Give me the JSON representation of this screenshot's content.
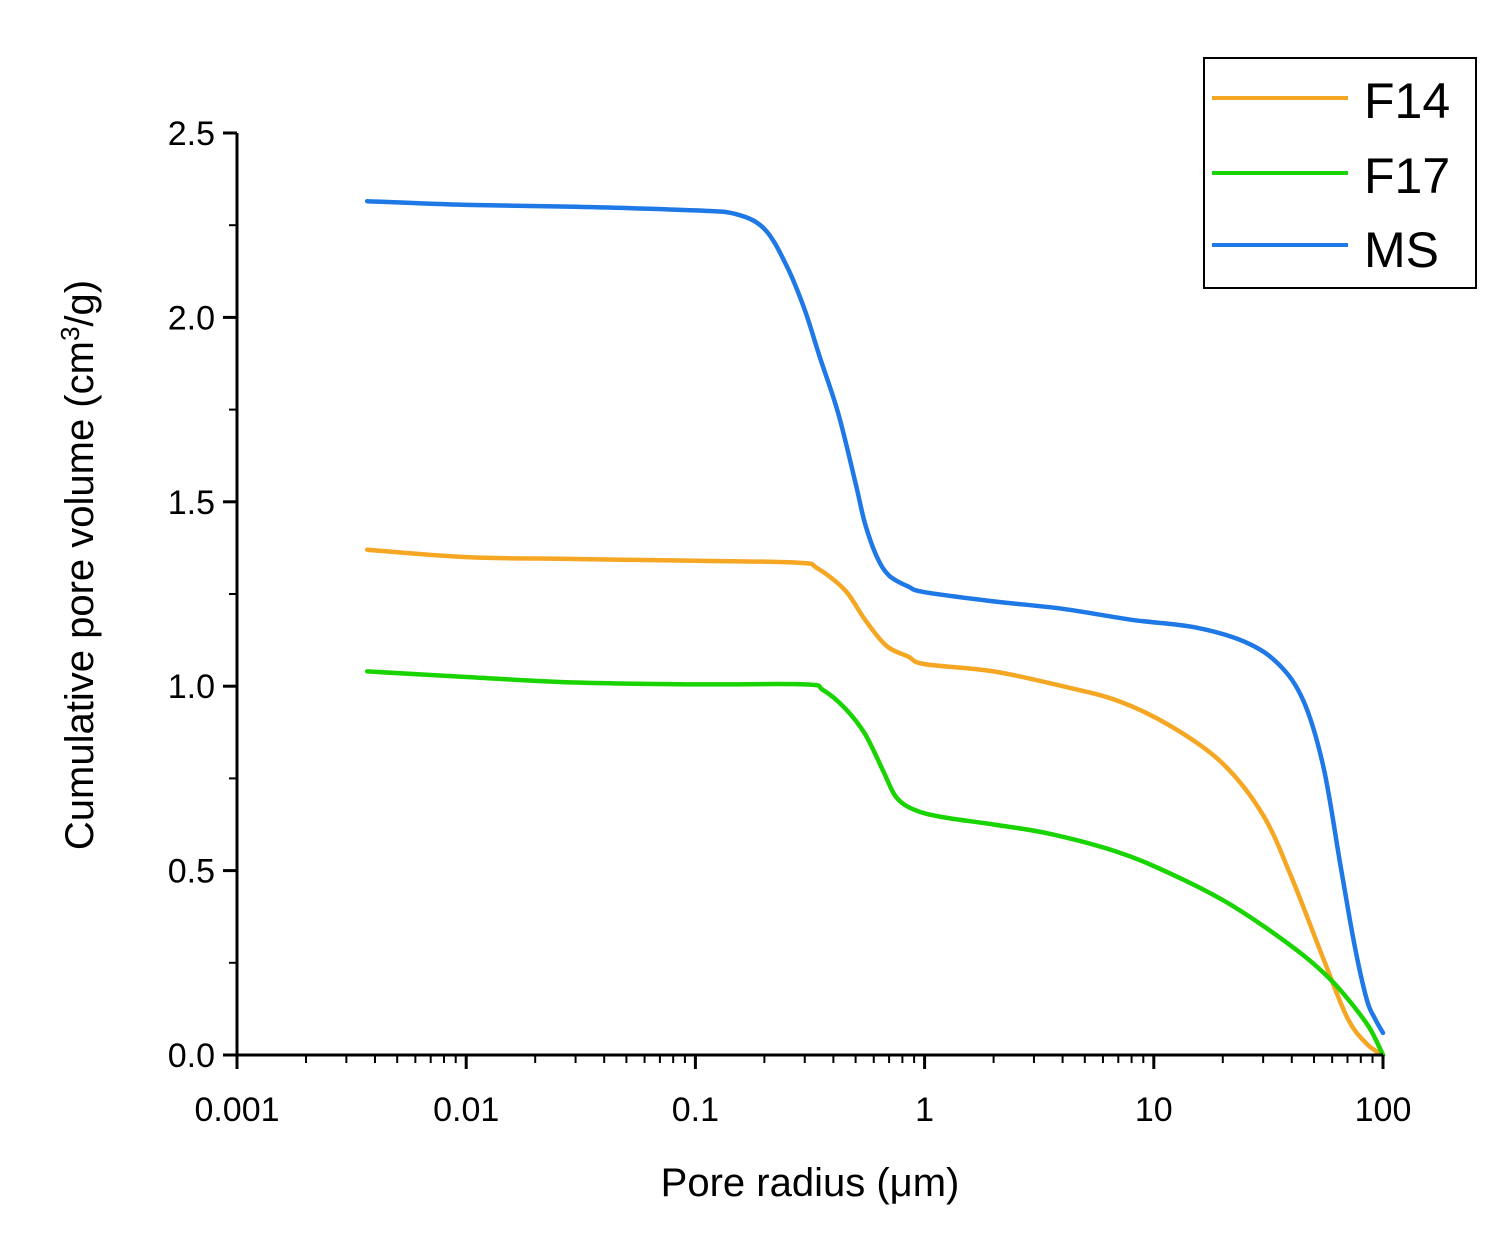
{
  "chart_data": {
    "type": "line",
    "xscale": "log",
    "xlabel": "Pore radius (μm)",
    "ylabel_parts": [
      "Cumulative pore volume (cm",
      "3",
      "/g)"
    ],
    "xlim": [
      0.001,
      100
    ],
    "ylim": [
      0,
      2.5
    ],
    "x_ticks": [
      0.001,
      0.01,
      0.1,
      1,
      10,
      100
    ],
    "x_tick_labels": [
      "0.001",
      "0.01",
      "0.1",
      "1",
      "10",
      "100"
    ],
    "y_ticks": [
      0,
      0.5,
      1,
      1.5,
      2,
      2.5
    ],
    "y_tick_labels": [
      "0.0",
      "0.5",
      "1.0",
      "1.5",
      "2.0",
      "2.5"
    ],
    "grid": false,
    "legend_position": "top-right",
    "series": [
      {
        "name": "F14",
        "color": "#F5A623",
        "points": [
          [
            0.0037,
            1.37
          ],
          [
            0.01,
            1.35
          ],
          [
            0.03,
            1.345
          ],
          [
            0.1,
            1.34
          ],
          [
            0.28,
            1.335
          ],
          [
            0.34,
            1.32
          ],
          [
            0.45,
            1.26
          ],
          [
            0.55,
            1.18
          ],
          [
            0.68,
            1.11
          ],
          [
            0.85,
            1.08
          ],
          [
            1.0,
            1.06
          ],
          [
            2.0,
            1.04
          ],
          [
            4.0,
            1.0
          ],
          [
            7.0,
            0.96
          ],
          [
            12.0,
            0.89
          ],
          [
            20.0,
            0.79
          ],
          [
            30.0,
            0.65
          ],
          [
            40.0,
            0.48
          ],
          [
            55.0,
            0.26
          ],
          [
            70.0,
            0.1
          ],
          [
            85.0,
            0.03
          ],
          [
            100.0,
            0.0
          ]
        ]
      },
      {
        "name": "F17",
        "color": "#19D400",
        "points": [
          [
            0.0037,
            1.04
          ],
          [
            0.01,
            1.025
          ],
          [
            0.03,
            1.01
          ],
          [
            0.1,
            1.005
          ],
          [
            0.3,
            1.005
          ],
          [
            0.36,
            0.99
          ],
          [
            0.45,
            0.94
          ],
          [
            0.55,
            0.87
          ],
          [
            0.66,
            0.77
          ],
          [
            0.75,
            0.7
          ],
          [
            0.9,
            0.665
          ],
          [
            1.2,
            0.645
          ],
          [
            2.0,
            0.625
          ],
          [
            3.5,
            0.6
          ],
          [
            7.0,
            0.55
          ],
          [
            12.0,
            0.49
          ],
          [
            20.0,
            0.42
          ],
          [
            30.0,
            0.35
          ],
          [
            45.0,
            0.27
          ],
          [
            60.0,
            0.2
          ],
          [
            75.0,
            0.13
          ],
          [
            88.0,
            0.07
          ],
          [
            100.0,
            0.0
          ]
        ]
      },
      {
        "name": "MS",
        "color": "#1E78E6",
        "points": [
          [
            0.0037,
            2.315
          ],
          [
            0.01,
            2.305
          ],
          [
            0.03,
            2.3
          ],
          [
            0.1,
            2.29
          ],
          [
            0.15,
            2.28
          ],
          [
            0.2,
            2.24
          ],
          [
            0.25,
            2.14
          ],
          [
            0.3,
            2.02
          ],
          [
            0.35,
            1.89
          ],
          [
            0.42,
            1.74
          ],
          [
            0.5,
            1.55
          ],
          [
            0.55,
            1.44
          ],
          [
            0.62,
            1.35
          ],
          [
            0.7,
            1.3
          ],
          [
            0.85,
            1.27
          ],
          [
            1.0,
            1.255
          ],
          [
            2.0,
            1.23
          ],
          [
            4.0,
            1.21
          ],
          [
            8.0,
            1.18
          ],
          [
            15.0,
            1.16
          ],
          [
            25.0,
            1.12
          ],
          [
            35.0,
            1.06
          ],
          [
            45.0,
            0.96
          ],
          [
            55.0,
            0.78
          ],
          [
            65.0,
            0.52
          ],
          [
            75.0,
            0.3
          ],
          [
            85.0,
            0.15
          ],
          [
            92.0,
            0.1
          ],
          [
            100.0,
            0.06
          ]
        ]
      }
    ]
  }
}
